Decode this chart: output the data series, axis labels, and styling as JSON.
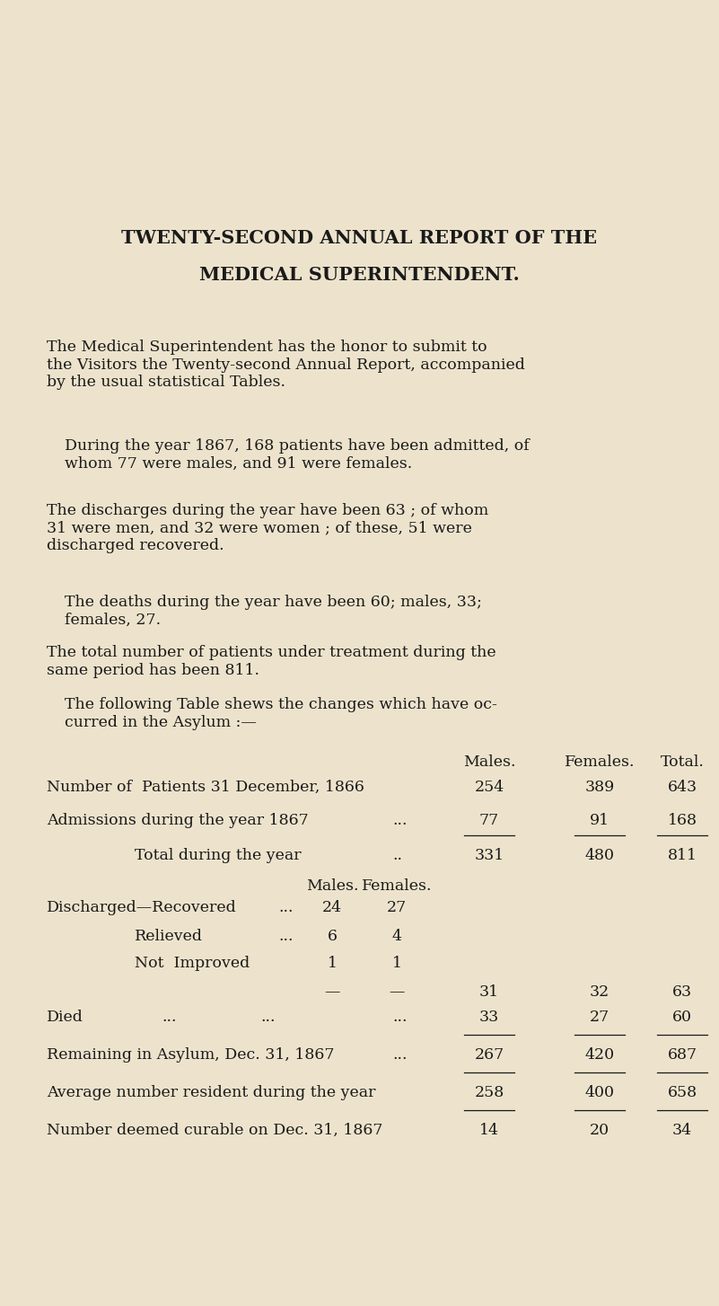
{
  "bg_color": "#ede3cc",
  "text_color": "#1a1a1a",
  "title1": "TWENTY-SECOND ANNUAL REPORT OF THE",
  "title2": "MEDICAL SUPERINTENDENT.",
  "para1": "The Medical Superintendent has the honor to submit to\nthe Visitors the Twenty-second Annual Report, accompanied\nby the usual statistical Tables.",
  "para2": "During the year 1867, 168 patients have been admitted, of\nwhom 77 were males, and 91 were females.",
  "para3": "The discharges during the year have been 63 ; of whom\n31 were men, and 32 were women ; of these, 51 were\ndischarged recovered.",
  "para4": "The deaths during the year have been 60; males, 33;\nfemales, 27.",
  "para5": "The total number of patients under treatment during the\nsame period has been 811.",
  "para6": "The following Table shews the changes which have oc-\ncurred in the Asylum :—",
  "fig_w": 8.01,
  "fig_h": 14.54,
  "dpi": 100
}
